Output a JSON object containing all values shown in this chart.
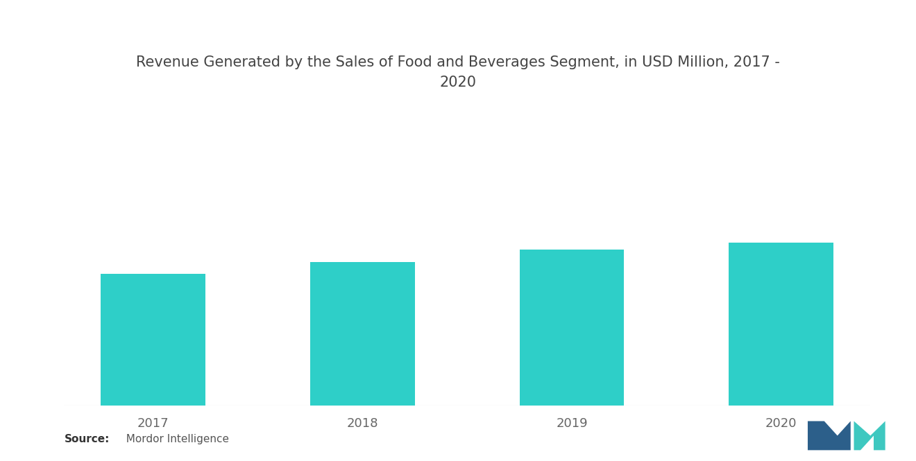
{
  "title": "Revenue Generated by the Sales of Food and Beverages Segment, in USD Million, 2017 -\n2020",
  "categories": [
    "2017",
    "2018",
    "2019",
    "2020"
  ],
  "values": [
    55,
    60,
    65,
    68
  ],
  "bar_color": "#2ecfc8",
  "background_color": "#ffffff",
  "title_fontsize": 15,
  "tick_fontsize": 13,
  "source_bold": "Source:",
  "source_normal": "  Mordor Intelligence",
  "ylim": [
    0,
    100
  ],
  "bar_width": 0.5,
  "title_color": "#444444",
  "tick_color": "#666666"
}
